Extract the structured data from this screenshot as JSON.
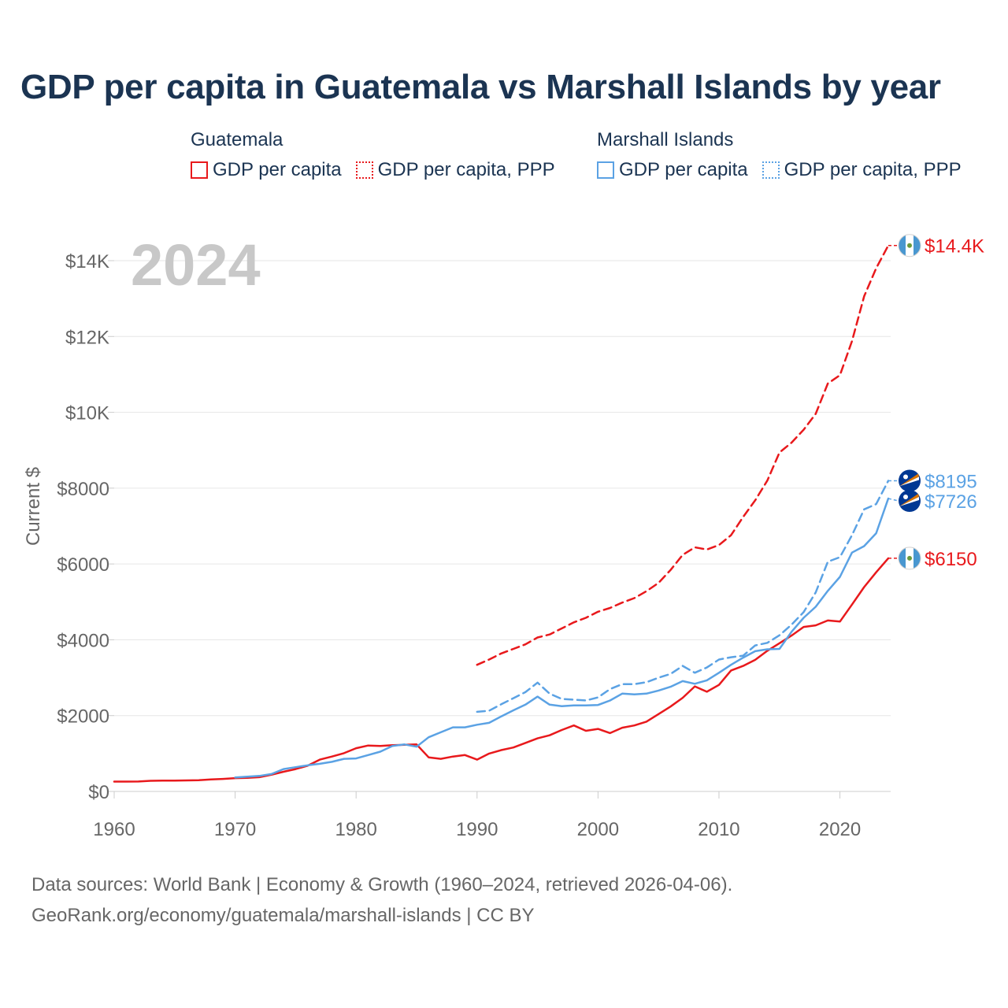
{
  "chart_data": {
    "type": "line",
    "title": "GDP per capita in Guatemala vs Marshall Islands by year",
    "ylabel": "Current $",
    "xlabel": "",
    "year_label": "2024",
    "xlim": [
      1960,
      2024
    ],
    "ylim": [
      0,
      14800
    ],
    "xticks": [
      1960,
      1970,
      1980,
      1990,
      2000,
      2010,
      2020
    ],
    "xtick_labels": [
      "1960",
      "1970",
      "1980",
      "1990",
      "2000",
      "2010",
      "2020"
    ],
    "yticks": [
      0,
      2000,
      4000,
      6000,
      8000,
      10000,
      12000,
      14000
    ],
    "ytick_labels": [
      "$0",
      "$2000",
      "$4000",
      "$6000",
      "$8000",
      "$10K",
      "$12K",
      "$14K"
    ],
    "legend": [
      {
        "country": "Guatemala",
        "items": [
          "GDP per capita",
          "GDP per capita, PPP"
        ]
      },
      {
        "country": "Marshall Islands",
        "items": [
          "GDP per capita",
          "GDP per capita, PPP"
        ]
      }
    ],
    "series": [
      {
        "name": "Guatemala GDP per capita, PPP",
        "country": "Guatemala",
        "dashed": true,
        "color": "#e8191c",
        "end_label": "$14.4K",
        "x": [
          1990,
          1991,
          1992,
          1993,
          1994,
          1995,
          1996,
          1997,
          1998,
          1999,
          2000,
          2001,
          2002,
          2003,
          2004,
          2005,
          2006,
          2007,
          2008,
          2009,
          2010,
          2011,
          2012,
          2013,
          2014,
          2015,
          2016,
          2017,
          2018,
          2019,
          2020,
          2021,
          2022,
          2023,
          2024
        ],
        "values": [
          3340,
          3480,
          3640,
          3760,
          3880,
          4060,
          4140,
          4300,
          4460,
          4580,
          4740,
          4840,
          4980,
          5100,
          5280,
          5500,
          5840,
          6240,
          6440,
          6380,
          6500,
          6760,
          7240,
          7680,
          8200,
          8940,
          9200,
          9540,
          9960,
          10760,
          10980,
          11880,
          13060,
          13800,
          14400
        ]
      },
      {
        "name": "Guatemala GDP per capita",
        "country": "Guatemala",
        "dashed": false,
        "color": "#e8191c",
        "end_label": "$6150",
        "x": [
          1960,
          1961,
          1962,
          1963,
          1964,
          1965,
          1966,
          1967,
          1968,
          1969,
          1970,
          1971,
          1972,
          1973,
          1974,
          1975,
          1976,
          1977,
          1978,
          1979,
          1980,
          1981,
          1982,
          1983,
          1984,
          1985,
          1986,
          1987,
          1988,
          1989,
          1990,
          1991,
          1992,
          1993,
          1994,
          1995,
          1996,
          1997,
          1998,
          1999,
          2000,
          2001,
          2002,
          2003,
          2004,
          2005,
          2006,
          2007,
          2008,
          2009,
          2010,
          2011,
          2012,
          2013,
          2014,
          2015,
          2016,
          2017,
          2018,
          2019,
          2020,
          2021,
          2022,
          2023,
          2024
        ],
        "values": [
          260,
          260,
          262,
          280,
          285,
          285,
          290,
          298,
          315,
          330,
          350,
          360,
          375,
          440,
          520,
          590,
          680,
          840,
          920,
          1010,
          1140,
          1210,
          1200,
          1220,
          1230,
          1240,
          900,
          860,
          920,
          960,
          840,
          1000,
          1090,
          1160,
          1280,
          1400,
          1480,
          1620,
          1740,
          1600,
          1650,
          1540,
          1680,
          1740,
          1840,
          2040,
          2240,
          2470,
          2770,
          2630,
          2810,
          3190,
          3310,
          3470,
          3710,
          3910,
          4110,
          4340,
          4380,
          4510,
          4480,
          4930,
          5390,
          5780,
          6150
        ]
      },
      {
        "name": "Marshall Islands GDP per capita, PPP",
        "country": "Marshall Islands",
        "dashed": true,
        "color": "#5ba2e4",
        "end_label": "$8195",
        "x": [
          1990,
          1991,
          1992,
          1993,
          1994,
          1995,
          1996,
          1997,
          1998,
          1999,
          2000,
          2001,
          2002,
          2003,
          2004,
          2005,
          2006,
          2007,
          2008,
          2009,
          2010,
          2011,
          2012,
          2013,
          2014,
          2015,
          2016,
          2017,
          2018,
          2019,
          2020,
          2021,
          2022,
          2023,
          2024
        ],
        "values": [
          2100,
          2130,
          2300,
          2460,
          2620,
          2870,
          2580,
          2440,
          2420,
          2400,
          2480,
          2700,
          2830,
          2830,
          2880,
          3000,
          3100,
          3310,
          3130,
          3270,
          3480,
          3540,
          3580,
          3850,
          3920,
          4120,
          4400,
          4730,
          5250,
          6060,
          6180,
          6760,
          7440,
          7580,
          8195
        ]
      },
      {
        "name": "Marshall Islands GDP per capita",
        "country": "Marshall Islands",
        "dashed": false,
        "color": "#5ba2e4",
        "end_label": "$7726",
        "x": [
          1970,
          1971,
          1972,
          1973,
          1974,
          1975,
          1976,
          1977,
          1978,
          1979,
          1980,
          1981,
          1982,
          1983,
          1984,
          1985,
          1986,
          1987,
          1988,
          1989,
          1990,
          1991,
          1992,
          1993,
          1994,
          1995,
          1996,
          1997,
          1998,
          1999,
          2000,
          2001,
          2002,
          2003,
          2004,
          2005,
          2006,
          2007,
          2008,
          2009,
          2010,
          2011,
          2012,
          2013,
          2014,
          2015,
          2016,
          2017,
          2018,
          2019,
          2020,
          2021,
          2022,
          2023,
          2024
        ],
        "values": [
          370,
          390,
          410,
          460,
          590,
          640,
          690,
          730,
          780,
          860,
          870,
          960,
          1050,
          1200,
          1240,
          1180,
          1430,
          1560,
          1690,
          1690,
          1760,
          1810,
          1980,
          2140,
          2290,
          2500,
          2290,
          2250,
          2270,
          2270,
          2280,
          2400,
          2580,
          2560,
          2580,
          2660,
          2760,
          2910,
          2840,
          2930,
          3130,
          3340,
          3530,
          3700,
          3750,
          3760,
          4210,
          4580,
          4870,
          5290,
          5660,
          6300,
          6470,
          6810,
          7726
        ]
      }
    ]
  },
  "footer": {
    "line1": "Data sources: World Bank | Economy & Growth (1960–2024, retrieved 2026-04-06).",
    "line2": "GeoRank.org/economy/guatemala/marshall-islands | CC BY"
  },
  "colors": {
    "guatemala": "#e8191c",
    "marshall": "#5ba2e4",
    "title": "#1b3452",
    "axis_text": "#666666",
    "grid": "#e6e6e6",
    "year_watermark": "#c8c8c8"
  },
  "icons": {
    "guatemala_flag": "guatemala-flag-icon",
    "marshall_flag": "marshall-islands-flag-icon"
  }
}
